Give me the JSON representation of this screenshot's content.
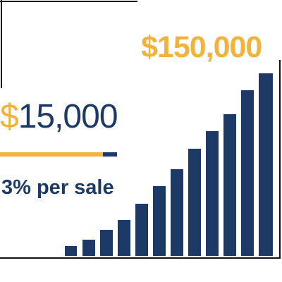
{
  "goal": "$150,000",
  "earnings": "$15,000",
  "rate": "3% per sale"
}
